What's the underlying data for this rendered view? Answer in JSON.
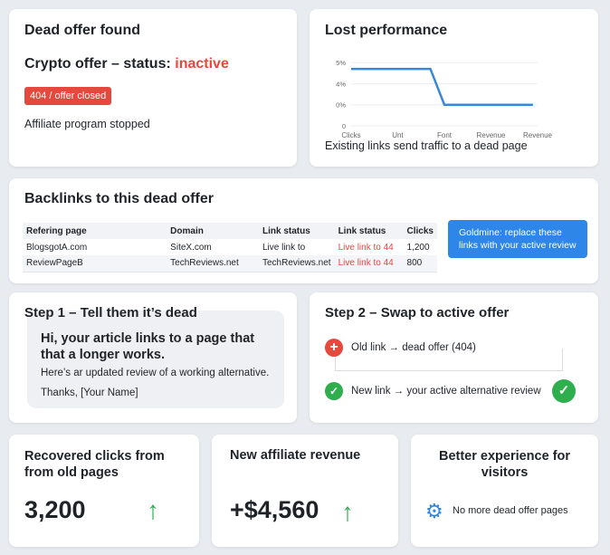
{
  "dead_offer": {
    "title": "Dead offer found",
    "subtitle_prefix": "Crypto offer – status: ",
    "status": "inactive",
    "badge": "404 / offer closed",
    "note": "Affiliate program stopped"
  },
  "performance": {
    "title": "Lost performance",
    "caption": "Existing links send traffic to a dead page"
  },
  "chart_data": {
    "type": "line",
    "title": "Lost performance",
    "x_ticks": [
      "Clicks",
      "Unt",
      "Font",
      "Revenue",
      "Revenue"
    ],
    "y_ticks": [
      "0",
      "0%",
      "4%",
      "5%"
    ],
    "grid": true,
    "color": "#3a86d9",
    "points": [
      {
        "x": 0,
        "y": 4.7
      },
      {
        "x": 1.7,
        "y": 4.7
      },
      {
        "x": 2,
        "y": 0
      },
      {
        "x": 3.9,
        "y": 0
      }
    ]
  },
  "backlinks": {
    "title": "Backlinks to this dead offer",
    "headers": [
      "Refering page",
      "Domain",
      "Link status",
      "Link status",
      "Clicks"
    ],
    "rows": [
      [
        "BlogsgotA.com",
        "SiteX.com",
        "Live link to",
        "Live link to 44",
        "1,200"
      ],
      [
        "ReviewPageB",
        "TechReviews.net",
        "TechReviews.net",
        "Live link to 44",
        "800"
      ]
    ],
    "cta": "Goldmine: replace these links with your active review"
  },
  "step1": {
    "title": "Step 1 – Tell them it’s dead",
    "message": "Hi, your article links to a page that that a longer works.",
    "body": "Here’s ar updated review of a working alternative.",
    "sign": "Thanks, [Your Name]"
  },
  "step2": {
    "title": "Step 2 – Swap to active offer",
    "old": "Old link → dead offer (404)",
    "new": "New link → your active alternative review"
  },
  "stats": [
    {
      "title": "Recovered clicks from from old pages",
      "value": "3,200"
    },
    {
      "title": "New affiliate revenue",
      "value": "+$4,560"
    },
    {
      "title": "Better experience for visitors",
      "note": "No more dead offer pages"
    }
  ],
  "colors": {
    "red": "#e5483d",
    "blue": "#2d86e8",
    "green": "#2fae4e"
  }
}
